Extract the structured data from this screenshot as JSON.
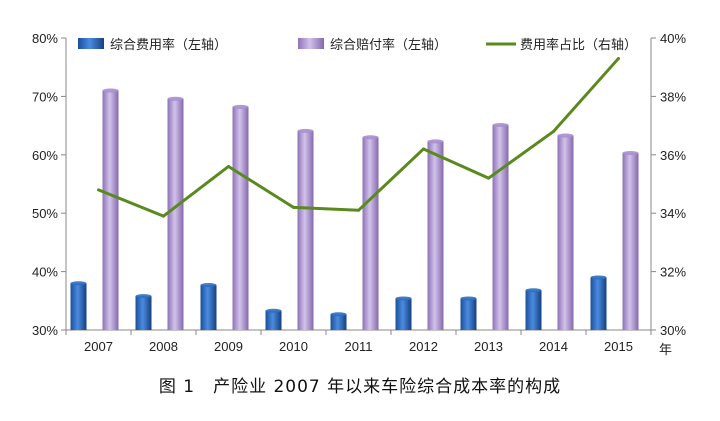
{
  "chart_data": {
    "type": "bar",
    "categories": [
      "2007",
      "2008",
      "2009",
      "2010",
      "2011",
      "2012",
      "2013",
      "2014",
      "2015"
    ],
    "x_unit_label": "年",
    "series": [
      {
        "name": "综合费用率（左轴）",
        "type": "bar",
        "axis": "left",
        "color": "#2f6fc0",
        "values": [
          38.0,
          35.8,
          37.7,
          33.3,
          32.7,
          35.4,
          35.4,
          36.8,
          39.0
        ]
      },
      {
        "name": "综合赔付率（左轴）",
        "type": "bar",
        "axis": "left",
        "color": "#a98fce",
        "values": [
          71.0,
          69.6,
          68.2,
          64.1,
          63.0,
          62.3,
          65.1,
          63.3,
          60.3
        ]
      },
      {
        "name": "费用率占比（右轴）",
        "type": "line",
        "axis": "right",
        "color": "#5a8a1e",
        "values": [
          34.8,
          33.9,
          35.6,
          34.2,
          34.1,
          36.2,
          35.2,
          36.8,
          39.3
        ]
      }
    ],
    "y_left": {
      "min": 30,
      "max": 80,
      "step": 10,
      "unit": "%"
    },
    "y_right": {
      "min": 30,
      "max": 40,
      "step": 2,
      "unit": "%"
    },
    "legend_position": "top",
    "grid": false
  },
  "caption": "图 1　产险业 2007 年以来车险综合成本率的构成"
}
